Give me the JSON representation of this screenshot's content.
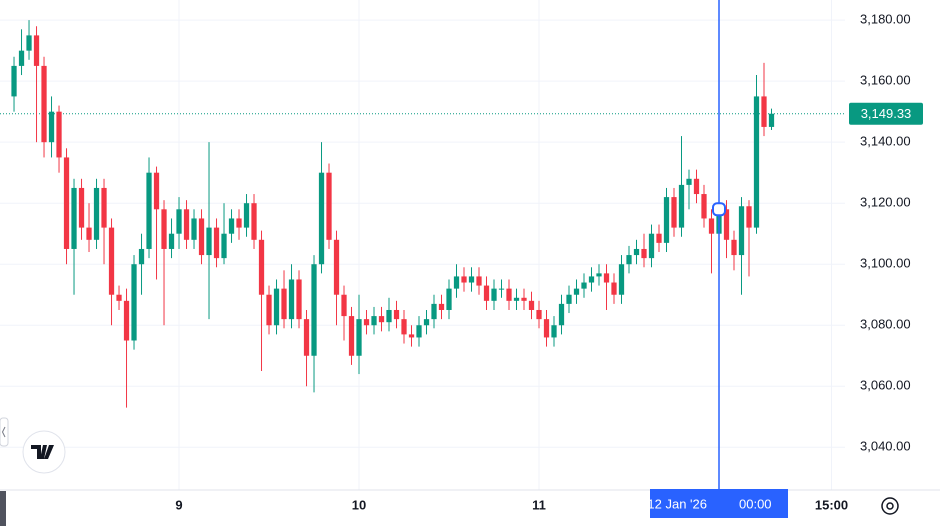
{
  "chart_data": {
    "type": "candlestick",
    "open": [
      3155,
      3165,
      3170,
      3175,
      3165,
      3140,
      3150,
      3135,
      3105,
      3125,
      3112,
      3108,
      3125,
      3112,
      3090,
      3088,
      3075,
      3100,
      3105,
      3130,
      3118,
      3105,
      3110,
      3118,
      3108,
      3115,
      3103,
      3112,
      3102,
      3110,
      3115,
      3112,
      3120,
      3108,
      3090,
      3080,
      3092,
      3082,
      3095,
      3082,
      3070,
      3100,
      3130,
      3108,
      3090,
      3083,
      3070,
      3082,
      3080,
      3083,
      3081,
      3085,
      3082,
      3077,
      3076,
      3080,
      3082,
      3087,
      3085,
      3092,
      3096,
      3094,
      3096,
      3093,
      3088,
      3092,
      3092,
      3088,
      3089,
      3088,
      3085,
      3082,
      3076,
      3080,
      3087,
      3090,
      3092,
      3094,
      3096,
      3097,
      3094,
      3090,
      3100,
      3103,
      3105,
      3102,
      3110,
      3107,
      3122,
      3112,
      3126,
      3128,
      3123,
      3115,
      3110,
      3118,
      3108,
      3103,
      3119,
      3112,
      3155,
      3145
    ],
    "high": [
      3168,
      3177,
      3180,
      3178,
      3168,
      3155,
      3152,
      3138,
      3128,
      3128,
      3120,
      3128,
      3128,
      3115,
      3093,
      3092,
      3103,
      3110,
      3135,
      3132,
      3121,
      3115,
      3122,
      3121,
      3118,
      3118,
      3140,
      3115,
      3120,
      3118,
      3118,
      3123,
      3123,
      3111,
      3093,
      3095,
      3098,
      3100,
      3098,
      3085,
      3103,
      3140,
      3133,
      3111,
      3093,
      3086,
      3090,
      3085,
      3086,
      3086,
      3089,
      3088,
      3085,
      3080,
      3083,
      3085,
      3090,
      3090,
      3095,
      3100,
      3099,
      3099,
      3099,
      3096,
      3095,
      3095,
      3095,
      3092,
      3092,
      3091,
      3088,
      3085,
      3083,
      3090,
      3093,
      3095,
      3097,
      3099,
      3100,
      3100,
      3097,
      3103,
      3106,
      3108,
      3110,
      3113,
      3113,
      3125,
      3125,
      3142,
      3131,
      3131,
      3126,
      3118,
      3121,
      3121,
      3111,
      3122,
      3121,
      3162,
      3166,
      3151
    ],
    "low": [
      3150,
      3162,
      3167,
      3140,
      3135,
      3135,
      3130,
      3100,
      3090,
      3108,
      3104,
      3105,
      3100,
      3080,
      3085,
      3053,
      3072,
      3090,
      3102,
      3095,
      3080,
      3102,
      3105,
      3105,
      3105,
      3100,
      3082,
      3099,
      3100,
      3107,
      3108,
      3109,
      3105,
      3065,
      3077,
      3077,
      3079,
      3079,
      3079,
      3060,
      3058,
      3097,
      3105,
      3080,
      3075,
      3067,
      3064,
      3077,
      3077,
      3078,
      3078,
      3079,
      3074,
      3073,
      3073,
      3077,
      3079,
      3082,
      3082,
      3089,
      3091,
      3091,
      3090,
      3085,
      3085,
      3089,
      3085,
      3085,
      3085,
      3082,
      3079,
      3073,
      3073,
      3077,
      3084,
      3087,
      3089,
      3091,
      3093,
      3085,
      3087,
      3087,
      3097,
      3100,
      3099,
      3099,
      3104,
      3104,
      3109,
      3109,
      3118,
      3120,
      3112,
      3097,
      3100,
      3102,
      3098,
      3090,
      3096,
      3110,
      3142,
      3144
    ],
    "close": [
      3165,
      3170,
      3175,
      3165,
      3140,
      3150,
      3135,
      3105,
      3125,
      3112,
      3108,
      3125,
      3112,
      3090,
      3088,
      3075,
      3100,
      3105,
      3130,
      3118,
      3105,
      3110,
      3118,
      3108,
      3115,
      3103,
      3112,
      3102,
      3110,
      3115,
      3112,
      3120,
      3108,
      3090,
      3080,
      3092,
      3082,
      3095,
      3082,
      3070,
      3100,
      3130,
      3108,
      3090,
      3083,
      3070,
      3082,
      3080,
      3083,
      3081,
      3085,
      3082,
      3077,
      3076,
      3080,
      3082,
      3087,
      3085,
      3092,
      3096,
      3094,
      3096,
      3093,
      3088,
      3092,
      3092,
      3088,
      3089,
      3088,
      3085,
      3082,
      3076,
      3080,
      3087,
      3090,
      3092,
      3094,
      3096,
      3097,
      3094,
      3090,
      3100,
      3103,
      3105,
      3102,
      3110,
      3107,
      3122,
      3112,
      3126,
      3128,
      3123,
      3115,
      3110,
      3118,
      3108,
      3103,
      3119,
      3112,
      3155,
      3145,
      3149.33
    ],
    "up_color": "#089981",
    "down_color": "#f23645",
    "ylim": [
      3026,
      3186.6
    ],
    "yticks": [
      {
        "value": 3040,
        "label": "3,040.00"
      },
      {
        "value": 3060,
        "label": "3,060.00"
      },
      {
        "value": 3080,
        "label": "3,080.00"
      },
      {
        "value": 3100,
        "label": "3,100.00"
      },
      {
        "value": 3120,
        "label": "3,120.00"
      },
      {
        "value": 3140,
        "label": "3,140.00"
      },
      {
        "value": 3160,
        "label": "3,160.00"
      },
      {
        "value": 3180,
        "label": "3,180.00"
      }
    ],
    "xlim": [
      -1.87,
      110.8
    ],
    "xticks": [
      {
        "value": 22,
        "label": "9"
      },
      {
        "value": 46,
        "label": "10"
      },
      {
        "value": 70,
        "label": "11"
      },
      {
        "value": 109,
        "label": "15:00"
      }
    ],
    "grid": true,
    "last_price": {
      "value": 3149.33,
      "label": "3,149.33"
    },
    "crosshair": {
      "x": 94,
      "date_label": "12 Jan '26",
      "time_label": "00:00"
    }
  }
}
